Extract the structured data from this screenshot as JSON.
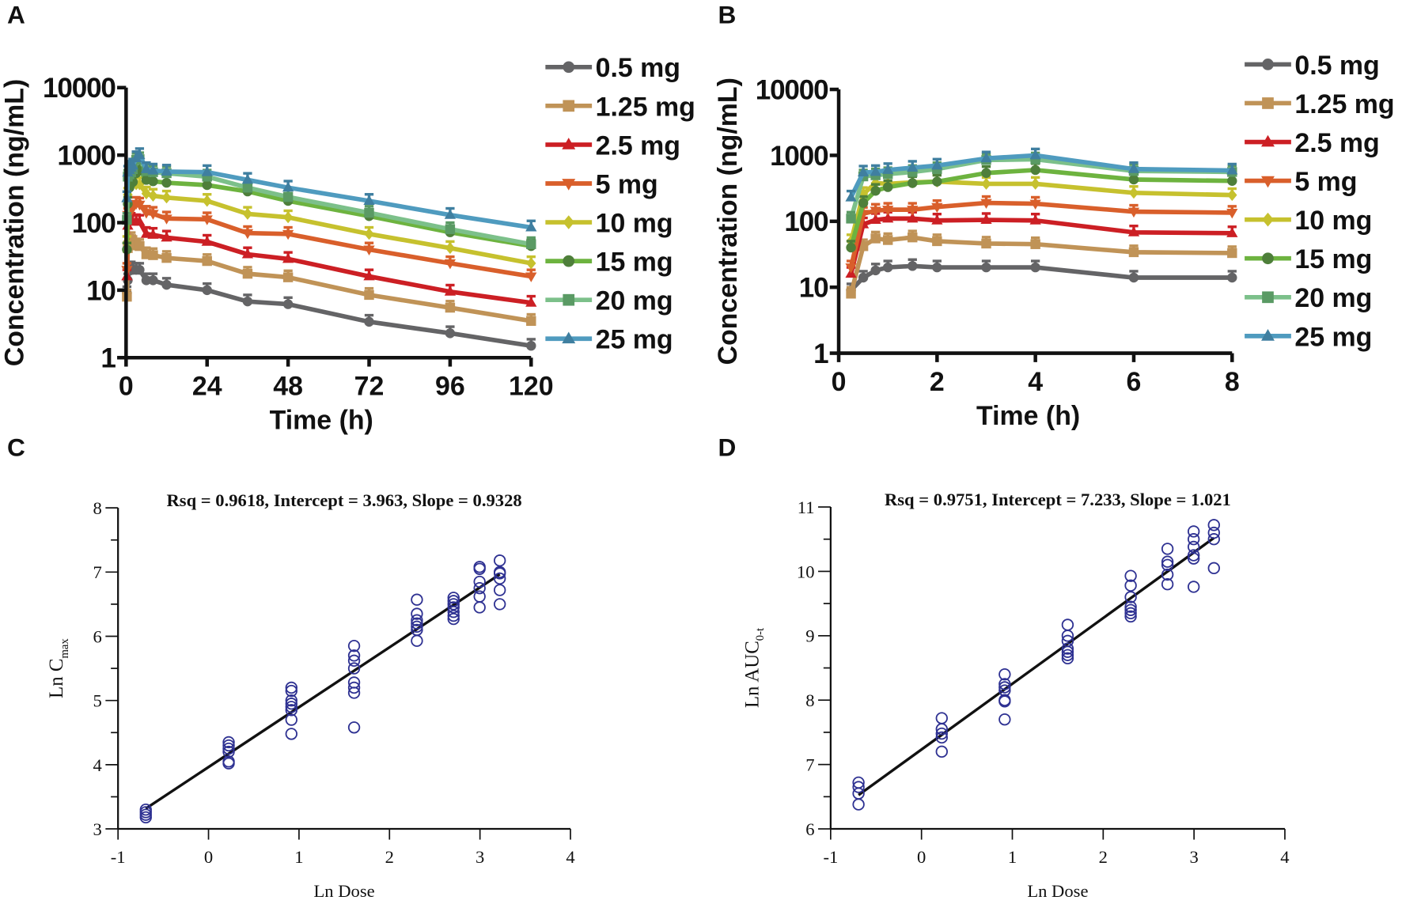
{
  "panel_labels": {
    "a": "A",
    "b": "B",
    "c": "C",
    "d": "D"
  },
  "chart_data": [
    {
      "panel": "A",
      "type": "line",
      "xlabel": "Time (h)",
      "ylabel": "Concentration (ng/mL)",
      "yscale": "log",
      "ylim": [
        1,
        10000
      ],
      "xlim": [
        0,
        120
      ],
      "xticks": [
        "0",
        "24",
        "48",
        "72",
        "96",
        "120"
      ],
      "yticks": [
        "1",
        "10",
        "100",
        "1000",
        "10000"
      ],
      "legend": "right",
      "x": [
        0.25,
        0.5,
        1,
        1.5,
        2,
        3,
        4,
        6,
        8,
        12,
        24,
        36,
        48,
        72,
        96,
        120
      ],
      "series": [
        {
          "name": "0.5 mg",
          "color": "#646466",
          "line": "#646466",
          "marker": "circle",
          "values": [
            9,
            14,
            20,
            21,
            20,
            20,
            20,
            14,
            14,
            12,
            10,
            6.8,
            6.2,
            3.4,
            2.3,
            1.5
          ]
        },
        {
          "name": "1.25 mg",
          "color": "#c09357",
          "line": "#c09357",
          "marker": "square",
          "values": [
            8,
            42,
            52,
            57,
            50,
            46,
            45,
            34,
            33,
            30,
            27,
            17.5,
            15.5,
            8.5,
            5.5,
            3.5
          ]
        },
        {
          "name": "2.5 mg",
          "color": "#cc1f24",
          "line": "#cc1f24",
          "marker": "triangle-up",
          "values": [
            16,
            90,
            110,
            110,
            103,
            105,
            103,
            68,
            66,
            60,
            52,
            34,
            29,
            16,
            9.5,
            6.5
          ]
        },
        {
          "name": "5 mg",
          "color": "#d95f2b",
          "line": "#d95f2b",
          "marker": "triangle-down",
          "values": [
            20,
            130,
            150,
            150,
            165,
            190,
            185,
            140,
            135,
            115,
            112,
            70,
            68,
            40,
            25,
            16
          ]
        },
        {
          "name": "10 mg",
          "color": "#c6c12e",
          "line": "#c6c12e",
          "marker": "diamond",
          "values": [
            50,
            260,
            370,
            390,
            400,
            370,
            370,
            270,
            250,
            235,
            210,
            135,
            120,
            68,
            42,
            25
          ]
        },
        {
          "name": "15 mg",
          "color": "#4e7f3a",
          "line": "#6db33f",
          "marker": "circle",
          "values": [
            40,
            190,
            330,
            380,
            400,
            540,
            600,
            430,
            410,
            390,
            360,
            290,
            210,
            125,
            72,
            45
          ]
        },
        {
          "name": "20 mg",
          "color": "#5a9a64",
          "line": "#7cc08a",
          "marker": "square",
          "values": [
            110,
            480,
            520,
            560,
            620,
            850,
            870,
            580,
            560,
            540,
            480,
            330,
            240,
            140,
            80,
            48
          ]
        },
        {
          "name": "25 mg",
          "color": "#3f7fa0",
          "line": "#4f9bbf",
          "marker": "triangle-up",
          "values": [
            230,
            550,
            600,
            650,
            700,
            900,
            1000,
            620,
            590,
            570,
            560,
            430,
            330,
            210,
            130,
            85
          ]
        }
      ]
    },
    {
      "panel": "B",
      "type": "line",
      "xlabel": "Time (h)",
      "ylabel": "Concentration (ng/mL)",
      "yscale": "log",
      "ylim": [
        1,
        10000
      ],
      "xlim": [
        0,
        8
      ],
      "xticks": [
        "0",
        "2",
        "4",
        "6",
        "8"
      ],
      "yticks": [
        "1",
        "10",
        "100",
        "1000",
        "10000"
      ],
      "legend": "right",
      "x": [
        0.25,
        0.5,
        0.75,
        1,
        1.5,
        2,
        3,
        4,
        6,
        8
      ],
      "series": [
        {
          "name": "0.5 mg",
          "color": "#646466",
          "line": "#646466",
          "marker": "circle",
          "values": [
            9,
            14,
            18,
            20,
            21,
            20,
            20,
            20,
            14,
            14
          ]
        },
        {
          "name": "1.25 mg",
          "color": "#c09357",
          "line": "#c09357",
          "marker": "square",
          "values": [
            8,
            42,
            55,
            52,
            57,
            50,
            46,
            45,
            34,
            33
          ]
        },
        {
          "name": "2.5 mg",
          "color": "#cc1f24",
          "line": "#cc1f24",
          "marker": "triangle-up",
          "values": [
            16,
            90,
            105,
            110,
            110,
            103,
            105,
            103,
            68,
            66
          ]
        },
        {
          "name": "5 mg",
          "color": "#d95f2b",
          "line": "#d95f2b",
          "marker": "triangle-down",
          "values": [
            20,
            130,
            145,
            150,
            150,
            165,
            190,
            185,
            140,
            135
          ]
        },
        {
          "name": "10 mg",
          "color": "#c6c12e",
          "line": "#c6c12e",
          "marker": "diamond",
          "values": [
            50,
            260,
            380,
            370,
            390,
            400,
            370,
            370,
            270,
            250
          ]
        },
        {
          "name": "15 mg",
          "color": "#4e7f3a",
          "line": "#6db33f",
          "marker": "circle",
          "values": [
            40,
            190,
            290,
            330,
            380,
            400,
            540,
            600,
            430,
            410
          ]
        },
        {
          "name": "20 mg",
          "color": "#5a9a64",
          "line": "#7cc08a",
          "marker": "square",
          "values": [
            110,
            480,
            500,
            520,
            560,
            620,
            850,
            870,
            580,
            560
          ]
        },
        {
          "name": "25 mg",
          "color": "#3f7fa0",
          "line": "#4f9bbf",
          "marker": "triangle-up",
          "values": [
            230,
            550,
            560,
            600,
            650,
            700,
            900,
            1000,
            620,
            590
          ]
        }
      ]
    },
    {
      "panel": "C",
      "type": "scatter",
      "title": "Rsq = 0.9618, Intercept = 3.963, Slope = 0.9328",
      "xlabel": "Ln Dose",
      "ylabel_main": "Ln C",
      "ylabel_sub": "max",
      "xlim": [
        -1,
        4
      ],
      "ylim": [
        3,
        8
      ],
      "xticks": [
        "-1",
        "0",
        "1",
        "2",
        "3",
        "4"
      ],
      "yticks": [
        "3",
        "4",
        "5",
        "6",
        "7",
        "8"
      ],
      "marker_color": "#2e3192",
      "fit": {
        "intercept": 3.963,
        "slope": 0.9328,
        "rsq": 0.9618
      },
      "points": [
        [
          -0.693,
          3.3
        ],
        [
          -0.693,
          3.26
        ],
        [
          -0.693,
          3.22
        ],
        [
          -0.693,
          3.18
        ],
        [
          0.223,
          4.35
        ],
        [
          0.223,
          4.3
        ],
        [
          0.223,
          4.25
        ],
        [
          0.223,
          4.2
        ],
        [
          0.223,
          4.05
        ],
        [
          0.223,
          4.02
        ],
        [
          0.916,
          5.2
        ],
        [
          0.916,
          5.15
        ],
        [
          0.916,
          5.0
        ],
        [
          0.916,
          4.95
        ],
        [
          0.916,
          4.9
        ],
        [
          0.916,
          4.85
        ],
        [
          0.916,
          4.7
        ],
        [
          0.916,
          4.48
        ],
        [
          1.609,
          5.85
        ],
        [
          1.609,
          5.7
        ],
        [
          1.609,
          5.62
        ],
        [
          1.609,
          5.5
        ],
        [
          1.609,
          5.28
        ],
        [
          1.609,
          5.2
        ],
        [
          1.609,
          5.12
        ],
        [
          1.609,
          4.58
        ],
        [
          2.303,
          6.57
        ],
        [
          2.303,
          6.35
        ],
        [
          2.303,
          6.25
        ],
        [
          2.303,
          6.2
        ],
        [
          2.303,
          6.15
        ],
        [
          2.303,
          6.1
        ],
        [
          2.303,
          5.93
        ],
        [
          2.708,
          6.6
        ],
        [
          2.708,
          6.55
        ],
        [
          2.708,
          6.5
        ],
        [
          2.708,
          6.45
        ],
        [
          2.708,
          6.38
        ],
        [
          2.708,
          6.32
        ],
        [
          2.708,
          6.27
        ],
        [
          2.996,
          7.08
        ],
        [
          2.996,
          7.05
        ],
        [
          2.996,
          6.85
        ],
        [
          2.996,
          6.75
        ],
        [
          2.996,
          6.62
        ],
        [
          2.996,
          6.45
        ],
        [
          3.219,
          7.18
        ],
        [
          3.219,
          7.0
        ],
        [
          3.219,
          6.98
        ],
        [
          3.219,
          6.9
        ],
        [
          3.219,
          6.72
        ],
        [
          3.219,
          6.5
        ]
      ]
    },
    {
      "panel": "D",
      "type": "scatter",
      "title": "Rsq = 0.9751, Intercept = 7.233, Slope = 1.021",
      "xlabel": "Ln Dose",
      "ylabel_main": "Ln AUC",
      "ylabel_sub": "0-t",
      "xlim": [
        -1,
        4
      ],
      "ylim": [
        6,
        11
      ],
      "xticks": [
        "-1",
        "0",
        "1",
        "2",
        "3",
        "4"
      ],
      "yticks": [
        "6",
        "7",
        "8",
        "9",
        "10",
        "11"
      ],
      "marker_color": "#2e3192",
      "fit": {
        "intercept": 7.233,
        "slope": 1.021,
        "rsq": 0.9751
      },
      "points": [
        [
          -0.693,
          6.72
        ],
        [
          -0.693,
          6.65
        ],
        [
          -0.693,
          6.55
        ],
        [
          -0.693,
          6.38
        ],
        [
          0.223,
          7.72
        ],
        [
          0.223,
          7.55
        ],
        [
          0.223,
          7.48
        ],
        [
          0.223,
          7.42
        ],
        [
          0.223,
          7.2
        ],
        [
          0.916,
          8.4
        ],
        [
          0.916,
          8.25
        ],
        [
          0.916,
          8.2
        ],
        [
          0.916,
          8.15
        ],
        [
          0.916,
          8.0
        ],
        [
          0.916,
          7.98
        ],
        [
          0.916,
          7.7
        ],
        [
          1.609,
          9.17
        ],
        [
          1.609,
          9.0
        ],
        [
          1.609,
          8.92
        ],
        [
          1.609,
          8.8
        ],
        [
          1.609,
          8.75
        ],
        [
          1.609,
          8.7
        ],
        [
          1.609,
          8.65
        ],
        [
          2.303,
          9.93
        ],
        [
          2.303,
          9.78
        ],
        [
          2.303,
          9.6
        ],
        [
          2.303,
          9.45
        ],
        [
          2.303,
          9.4
        ],
        [
          2.303,
          9.35
        ],
        [
          2.303,
          9.3
        ],
        [
          2.708,
          10.35
        ],
        [
          2.708,
          10.15
        ],
        [
          2.708,
          10.1
        ],
        [
          2.708,
          9.95
        ],
        [
          2.708,
          9.8
        ],
        [
          2.996,
          10.62
        ],
        [
          2.996,
          10.5
        ],
        [
          2.996,
          10.38
        ],
        [
          2.996,
          10.25
        ],
        [
          2.996,
          10.2
        ],
        [
          2.996,
          9.76
        ],
        [
          3.219,
          10.72
        ],
        [
          3.219,
          10.6
        ],
        [
          3.219,
          10.5
        ],
        [
          3.219,
          10.05
        ]
      ]
    }
  ]
}
